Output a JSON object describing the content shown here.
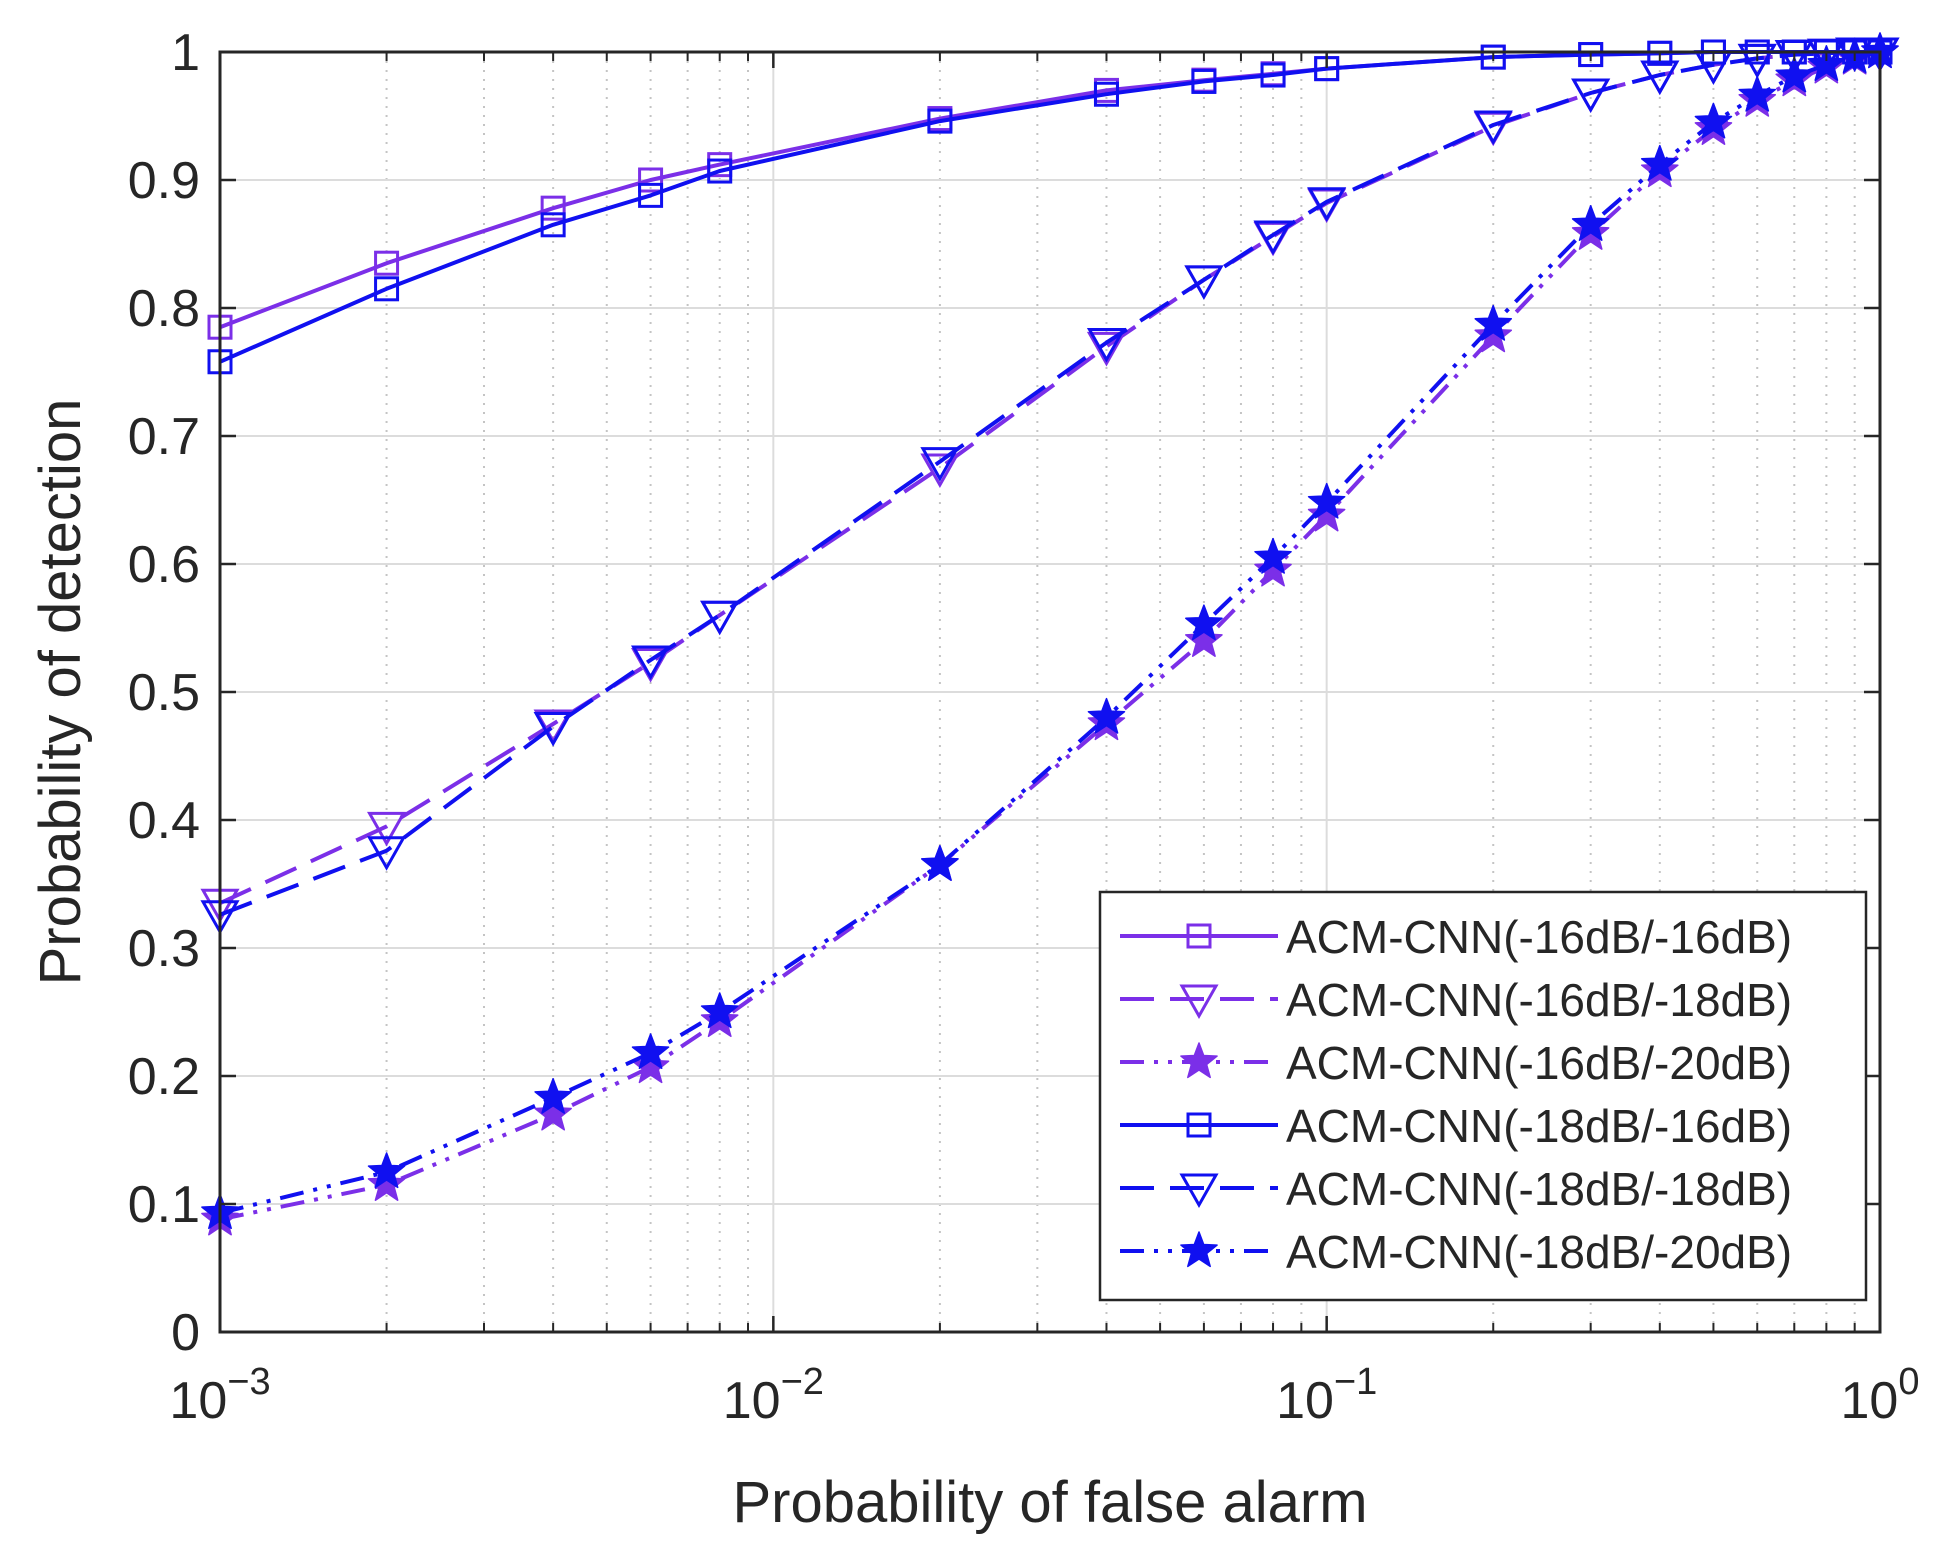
{
  "chart_data": {
    "type": "line",
    "xscale": "log",
    "xlabel": "Probability of false alarm",
    "ylabel": "Probability of detection",
    "xlim": [
      0.001,
      1
    ],
    "ylim": [
      0,
      1
    ],
    "grid": true,
    "minor_grid_x": true,
    "legend_position": "bottom-right",
    "x_ticks": [
      {
        "value": 0.001,
        "base": "10",
        "exp": "−3"
      },
      {
        "value": 0.01,
        "base": "10",
        "exp": "−2"
      },
      {
        "value": 0.1,
        "base": "10",
        "exp": "−1"
      },
      {
        "value": 1,
        "base": "10",
        "exp": "0"
      }
    ],
    "y_ticks": [
      {
        "value": 0,
        "label": "0"
      },
      {
        "value": 0.1,
        "label": "0.1"
      },
      {
        "value": 0.2,
        "label": "0.2"
      },
      {
        "value": 0.3,
        "label": "0.3"
      },
      {
        "value": 0.4,
        "label": "0.4"
      },
      {
        "value": 0.5,
        "label": "0.5"
      },
      {
        "value": 0.6,
        "label": "0.6"
      },
      {
        "value": 0.7,
        "label": "0.7"
      },
      {
        "value": 0.8,
        "label": "0.8"
      },
      {
        "value": 0.9,
        "label": "0.9"
      },
      {
        "value": 1,
        "label": "1"
      }
    ],
    "series": [
      {
        "name": "ACM-CNN(-16dB/-16dB)",
        "color": "#7b2fe8",
        "line_style": "solid",
        "marker": "square",
        "x": [
          0.001,
          0.002,
          0.004,
          0.006,
          0.008,
          0.02,
          0.04,
          0.06,
          0.08,
          0.1,
          0.2,
          0.3,
          0.4,
          0.5,
          0.6,
          0.7,
          0.8,
          0.9,
          1.0
        ],
        "y": [
          0.785,
          0.835,
          0.878,
          0.9,
          0.912,
          0.948,
          0.97,
          0.978,
          0.983,
          0.987,
          0.996,
          0.998,
          0.999,
          1.0,
          1.0,
          1.0,
          1.0,
          1.0,
          1.0
        ]
      },
      {
        "name": "ACM-CNN(-16dB/-18dB)",
        "color": "#7b2fe8",
        "line_style": "dashed",
        "marker": "triangle-down",
        "x": [
          0.001,
          0.002,
          0.004,
          0.006,
          0.008,
          0.02,
          0.04,
          0.06,
          0.08,
          0.1,
          0.2,
          0.3,
          0.4,
          0.5,
          0.6,
          0.7,
          0.8,
          0.9,
          1.0
        ],
        "y": [
          0.335,
          0.395,
          0.475,
          0.523,
          0.56,
          0.675,
          0.77,
          0.822,
          0.856,
          0.882,
          0.942,
          0.968,
          0.982,
          0.99,
          0.995,
          0.998,
          0.999,
          1.0,
          1.0
        ]
      },
      {
        "name": "ACM-CNN(-16dB/-20dB)",
        "color": "#7b2fe8",
        "line_style": "dashdot",
        "marker": "star",
        "x": [
          0.001,
          0.002,
          0.004,
          0.006,
          0.008,
          0.02,
          0.04,
          0.06,
          0.08,
          0.1,
          0.2,
          0.3,
          0.4,
          0.5,
          0.6,
          0.7,
          0.8,
          0.9,
          1.0
        ],
        "y": [
          0.088,
          0.115,
          0.17,
          0.207,
          0.243,
          0.365,
          0.475,
          0.54,
          0.595,
          0.638,
          0.778,
          0.858,
          0.907,
          0.94,
          0.962,
          0.978,
          0.988,
          0.995,
          1.0
        ]
      },
      {
        "name": "ACM-CNN(-18dB/-16dB)",
        "color": "#1010f0",
        "line_style": "solid",
        "marker": "square",
        "x": [
          0.001,
          0.002,
          0.004,
          0.006,
          0.008,
          0.02,
          0.04,
          0.06,
          0.08,
          0.1,
          0.2,
          0.3,
          0.4,
          0.5,
          0.6,
          0.7,
          0.8,
          0.9,
          1.0
        ],
        "y": [
          0.758,
          0.815,
          0.865,
          0.888,
          0.907,
          0.946,
          0.967,
          0.977,
          0.982,
          0.987,
          0.996,
          0.998,
          0.999,
          1.0,
          1.0,
          1.0,
          1.0,
          1.0,
          1.0
        ]
      },
      {
        "name": "ACM-CNN(-18dB/-18dB)",
        "color": "#1010f0",
        "line_style": "dashed",
        "marker": "triangle-down",
        "x": [
          0.001,
          0.002,
          0.004,
          0.006,
          0.008,
          0.02,
          0.04,
          0.06,
          0.08,
          0.1,
          0.2,
          0.3,
          0.4,
          0.5,
          0.6,
          0.7,
          0.8,
          0.9,
          1.0
        ],
        "y": [
          0.326,
          0.376,
          0.473,
          0.525,
          0.56,
          0.68,
          0.773,
          0.822,
          0.857,
          0.883,
          0.943,
          0.968,
          0.982,
          0.99,
          0.995,
          0.998,
          0.999,
          1.0,
          1.0
        ]
      },
      {
        "name": "ACM-CNN(-18dB/-20dB)",
        "color": "#1010f0",
        "line_style": "dashdot",
        "marker": "star",
        "x": [
          0.001,
          0.002,
          0.004,
          0.006,
          0.008,
          0.02,
          0.04,
          0.06,
          0.08,
          0.1,
          0.2,
          0.3,
          0.4,
          0.5,
          0.6,
          0.7,
          0.8,
          0.9,
          1.0
        ],
        "y": [
          0.093,
          0.125,
          0.183,
          0.218,
          0.25,
          0.365,
          0.48,
          0.553,
          0.605,
          0.648,
          0.787,
          0.865,
          0.912,
          0.945,
          0.966,
          0.981,
          0.99,
          0.996,
          1.0
        ]
      }
    ]
  }
}
